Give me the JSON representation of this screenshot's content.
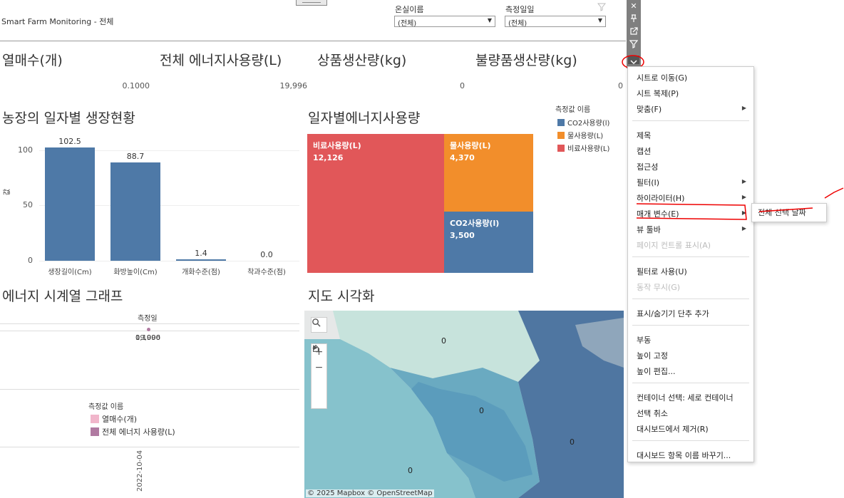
{
  "app": {
    "title": "Smart Farm Monitoring - 전체"
  },
  "filters": [
    {
      "label": "온실이름",
      "value": "(전체)"
    },
    {
      "label": "측정일일",
      "value": "(전체)"
    }
  ],
  "kpis": [
    {
      "title": "열매수(개)",
      "value": "0.1000"
    },
    {
      "title": "전체 에너지사용량(L)",
      "value": "19,996"
    },
    {
      "title": "상품생산량(kg)",
      "value": "0"
    },
    {
      "title": "불량품생산량(kg)",
      "value": "0"
    }
  ],
  "growth": {
    "title": "농장의 일자별 생장현황",
    "ylabel": "값",
    "chart_data": {
      "type": "bar",
      "categories": [
        "생장길이(Cm)",
        "화방높이(Cm)",
        "개화수준(점)",
        "착과수준(점)"
      ],
      "values": [
        102.5,
        88.7,
        1.4,
        0.0
      ],
      "value_labels": [
        "102.5",
        "88.7",
        "1.4",
        "0.0"
      ],
      "yticks": [
        "100",
        "50",
        "0"
      ],
      "ylim": [
        0,
        110
      ],
      "color": "#4e79a7"
    }
  },
  "energy_by_day": {
    "title": "일자별에너지사용량",
    "chart_data": {
      "type": "treemap",
      "items": [
        {
          "name": "비료사용량(L)",
          "value": "12,126",
          "color": "#e15759"
        },
        {
          "name": "물사용량(L)",
          "value": "4,370",
          "color": "#f28e2b"
        },
        {
          "name": "CO2사용량(l)",
          "value": "3,500",
          "color": "#4e79a7"
        }
      ]
    },
    "legend": {
      "title": "측정값 이름",
      "items": [
        {
          "label": "CO2사용량(l)",
          "color": "#4e79a7"
        },
        {
          "label": "물사용량(L)",
          "color": "#f28e2b"
        },
        {
          "label": "비료사용량(L)",
          "color": "#e15759"
        }
      ]
    }
  },
  "timeseries": {
    "title": "에너지 시계열 그래프",
    "axis_title": "측정일",
    "overlap_values": [
      "0,1000",
      "19,996"
    ],
    "date": "2022-10-04",
    "legend": {
      "title": "측정값 이름",
      "items": [
        {
          "label": "열매수(개)",
          "color": "#f1b6cb"
        },
        {
          "label": "전체 에너지 사용량(L)",
          "color": "#b07aa1"
        }
      ]
    }
  },
  "map": {
    "title": "지도 시각화",
    "labels": [
      "0",
      "0",
      "0",
      "0"
    ],
    "attribution": "© 2025 Mapbox  © OpenStreetMap",
    "controls": {
      "search": "search-icon",
      "zoom_in": "+",
      "zoom_out": "−",
      "home": "home-icon",
      "play": "play-icon"
    }
  },
  "toolbar": {
    "icons": [
      "close-icon",
      "pin-icon",
      "popout-icon",
      "filter-icon",
      "more-icon"
    ]
  },
  "context_menu": {
    "items": [
      {
        "label": "시트로 이동(G)",
        "arrow": false,
        "disabled": false
      },
      {
        "label": "시트 복제(P)",
        "arrow": false,
        "disabled": false
      },
      {
        "label": "맞춤(F)",
        "arrow": true,
        "disabled": false
      },
      {
        "sep": true
      },
      {
        "label": "제목",
        "arrow": false,
        "disabled": false
      },
      {
        "label": "캡션",
        "arrow": false,
        "disabled": false
      },
      {
        "label": "접근성",
        "arrow": false,
        "disabled": false
      },
      {
        "label": "필터(I)",
        "arrow": true,
        "disabled": false
      },
      {
        "label": "하이라이터(H)",
        "arrow": true,
        "disabled": false
      },
      {
        "label": "매개 변수(E)",
        "arrow": true,
        "disabled": false
      },
      {
        "label": "뷰 툴바",
        "arrow": true,
        "disabled": false
      },
      {
        "label": "페이지 컨트롤 표시(A)",
        "arrow": false,
        "disabled": true
      },
      {
        "sep": true
      },
      {
        "label": "필터로 사용(U)",
        "arrow": false,
        "disabled": false
      },
      {
        "label": "동작 무시(G)",
        "arrow": false,
        "disabled": true
      },
      {
        "sep": true
      },
      {
        "label": "표시/숨기기 단추 추가",
        "arrow": false,
        "disabled": false
      },
      {
        "sep": true
      },
      {
        "label": "부동",
        "arrow": false,
        "disabled": false
      },
      {
        "label": "높이 고정",
        "arrow": false,
        "disabled": false
      },
      {
        "label": "높이 편집...",
        "arrow": false,
        "disabled": false
      },
      {
        "sep": true
      },
      {
        "label": "컨테이너 선택: 세로 컨테이너",
        "arrow": false,
        "disabled": false
      },
      {
        "label": "선택 취소",
        "arrow": false,
        "disabled": false
      },
      {
        "label": "대시보드에서 제거(R)",
        "arrow": false,
        "disabled": false
      },
      {
        "sep": true
      },
      {
        "label": "대시보드 항목 이름 바꾸기...",
        "arrow": false,
        "disabled": false
      }
    ],
    "submenu": {
      "label": "전체 선택 날짜"
    }
  }
}
